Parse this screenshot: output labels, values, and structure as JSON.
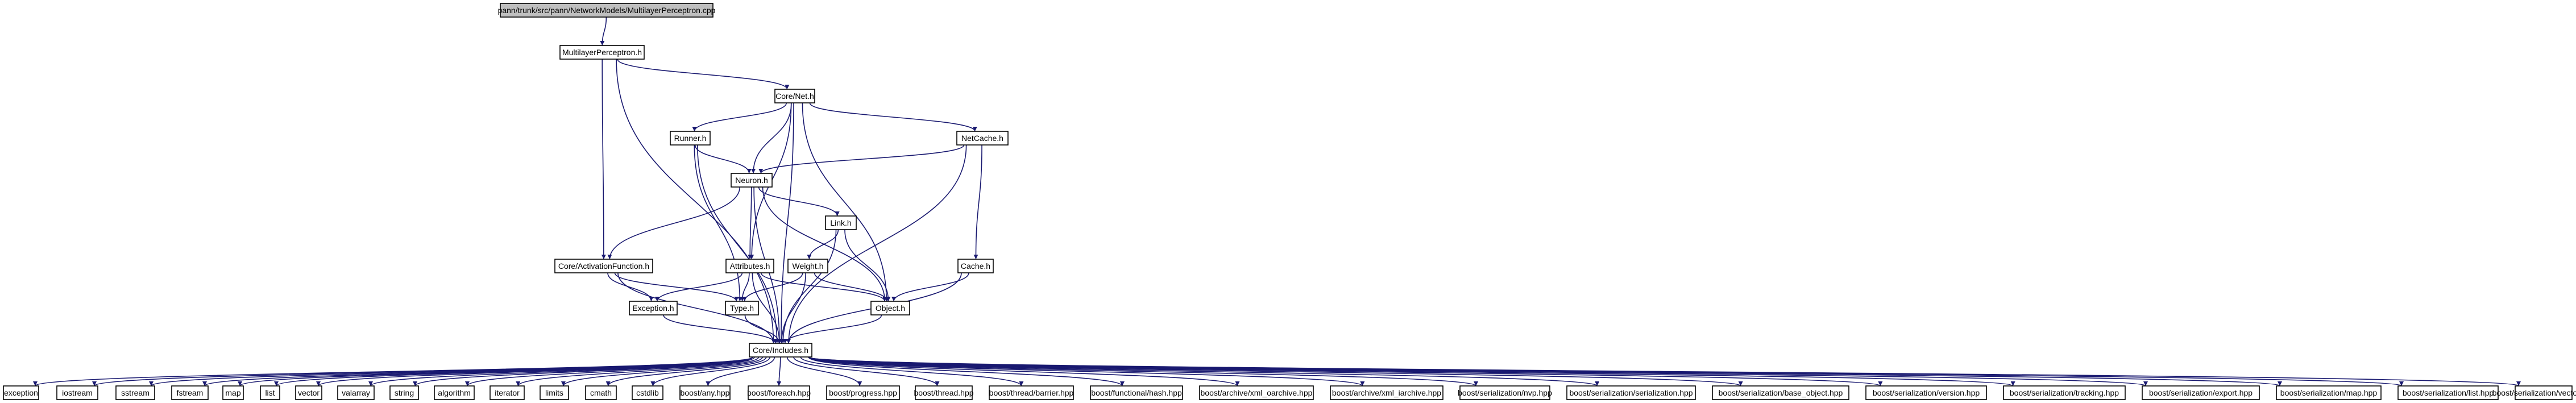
{
  "graph": {
    "colors": {
      "edge": "#191970",
      "root_fill": "#bfbfbf",
      "node_fill": "#ffffff",
      "border": "#000000"
    },
    "root": {
      "label": "pann/trunk/src/pann/NetworkModels/MultilayerPerceptron.cpp"
    },
    "nodes": {
      "mlp_h": "MultilayerPerceptron.h",
      "net_h": "Core/Net.h",
      "runner_h": "Runner.h",
      "netcache_h": "NetCache.h",
      "neuron_h": "Neuron.h",
      "link_h": "Link.h",
      "actfunc_h": "Core/ActivationFunction.h",
      "attributes_h": "Attributes.h",
      "weight_h": "Weight.h",
      "cache_h": "Cache.h",
      "exception_h": "Exception.h",
      "type_h": "Type.h",
      "object_h": "Object.h",
      "includes_h": "Core/Includes.h"
    },
    "leaves": [
      "exception",
      "iostream",
      "sstream",
      "fstream",
      "map",
      "list",
      "vector",
      "valarray",
      "string",
      "algorithm",
      "iterator",
      "limits",
      "cmath",
      "cstdlib",
      "boost/any.hpp",
      "boost/foreach.hpp",
      "boost/progress.hpp",
      "boost/thread.hpp",
      "boost/thread/barrier.hpp",
      "boost/functional/hash.hpp",
      "boost/archive/xml_oarchive.hpp",
      "boost/archive/xml_iarchive.hpp",
      "boost/serialization/nvp.hpp",
      "boost/serialization/serialization.hpp",
      "boost/serialization/base_object.hpp",
      "boost/serialization/version.hpp",
      "boost/serialization/tracking.hpp",
      "boost/serialization/export.hpp",
      "boost/serialization/map.hpp",
      "boost/serialization/list.hpp",
      "boost/serialization/vector.hpp"
    ],
    "edges": [
      [
        "root",
        "mlp_h"
      ],
      [
        "mlp_h",
        "net_h"
      ],
      [
        "mlp_h",
        "actfunc_h"
      ],
      [
        "mlp_h",
        "includes_h"
      ],
      [
        "net_h",
        "runner_h"
      ],
      [
        "net_h",
        "netcache_h"
      ],
      [
        "net_h",
        "neuron_h"
      ],
      [
        "net_h",
        "attributes_h"
      ],
      [
        "net_h",
        "object_h"
      ],
      [
        "net_h",
        "includes_h"
      ],
      [
        "runner_h",
        "neuron_h"
      ],
      [
        "runner_h",
        "type_h"
      ],
      [
        "runner_h",
        "includes_h"
      ],
      [
        "netcache_h",
        "neuron_h"
      ],
      [
        "netcache_h",
        "cache_h"
      ],
      [
        "netcache_h",
        "includes_h"
      ],
      [
        "neuron_h",
        "link_h"
      ],
      [
        "neuron_h",
        "actfunc_h"
      ],
      [
        "neuron_h",
        "attributes_h"
      ],
      [
        "neuron_h",
        "object_h"
      ],
      [
        "neuron_h",
        "includes_h"
      ],
      [
        "link_h",
        "weight_h"
      ],
      [
        "link_h",
        "object_h"
      ],
      [
        "link_h",
        "includes_h"
      ],
      [
        "actfunc_h",
        "exception_h"
      ],
      [
        "actfunc_h",
        "type_h"
      ],
      [
        "actfunc_h",
        "includes_h"
      ],
      [
        "attributes_h",
        "exception_h"
      ],
      [
        "attributes_h",
        "type_h"
      ],
      [
        "attributes_h",
        "object_h"
      ],
      [
        "attributes_h",
        "includes_h"
      ],
      [
        "weight_h",
        "type_h"
      ],
      [
        "weight_h",
        "object_h"
      ],
      [
        "weight_h",
        "includes_h"
      ],
      [
        "cache_h",
        "object_h"
      ],
      [
        "cache_h",
        "includes_h"
      ],
      [
        "exception_h",
        "includes_h"
      ],
      [
        "type_h",
        "includes_h"
      ],
      [
        "object_h",
        "includes_h"
      ]
    ]
  }
}
